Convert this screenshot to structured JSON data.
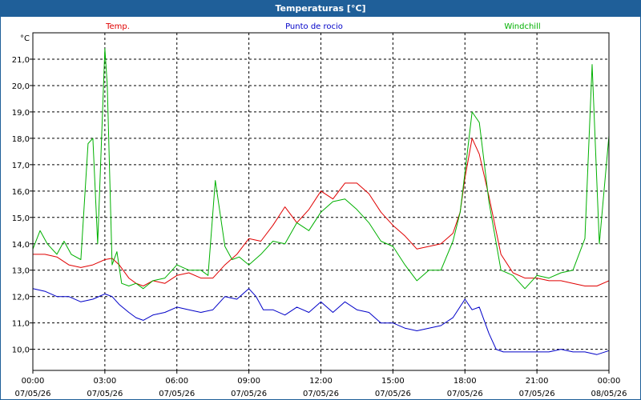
{
  "window": {
    "title": "Temperaturas [°C]"
  },
  "chart_data": {
    "type": "line",
    "title": "Temperaturas [°C]",
    "ylabel": "°C",
    "ylim": [
      9.2,
      22.0
    ],
    "yticks": [
      10.0,
      11.0,
      12.0,
      13.0,
      14.0,
      15.0,
      16.0,
      17.0,
      18.0,
      19.0,
      20.0,
      21.0
    ],
    "ytick_labels": [
      "10,0",
      "11,0",
      "12,0",
      "13,0",
      "14,0",
      "15,0",
      "16,0",
      "17,0",
      "18,0",
      "19,0",
      "20,0",
      "21,0"
    ],
    "xlim": [
      0,
      24
    ],
    "xticks": [
      0,
      3,
      6,
      9,
      12,
      15,
      18,
      21,
      24
    ],
    "xtick_labels": [
      [
        "00:00",
        "07/05/26"
      ],
      [
        "03:00",
        "07/05/26"
      ],
      [
        "06:00",
        "07/05/26"
      ],
      [
        "09:00",
        "07/05/26"
      ],
      [
        "12:00",
        "07/05/26"
      ],
      [
        "15:00",
        "07/05/26"
      ],
      [
        "18:00",
        "07/05/26"
      ],
      [
        "21:00",
        "07/05/26"
      ],
      [
        "00:00",
        "08/05/26"
      ]
    ],
    "grid": true,
    "legend_position": "top",
    "series": [
      {
        "name": "Temp.",
        "color": "#e00000",
        "x": [
          0,
          0.5,
          1,
          1.5,
          2,
          2.5,
          3,
          3.3,
          3.6,
          4,
          4.3,
          4.6,
          5,
          5.5,
          6,
          6.5,
          7,
          7.5,
          8,
          8.5,
          9,
          9.5,
          10,
          10.5,
          11,
          11.5,
          12,
          12.5,
          13,
          13.5,
          14,
          14.5,
          15,
          15.5,
          16,
          16.5,
          17,
          17.5,
          17.8,
          18,
          18.3,
          18.6,
          19,
          19.5,
          20,
          20.5,
          21,
          21.5,
          22,
          22.5,
          23,
          23.5,
          24
        ],
        "y": [
          13.6,
          13.6,
          13.5,
          13.2,
          13.1,
          13.2,
          13.4,
          13.45,
          13.2,
          12.7,
          12.5,
          12.4,
          12.6,
          12.5,
          12.8,
          12.9,
          12.7,
          12.7,
          13.2,
          13.6,
          14.2,
          14.1,
          14.7,
          15.4,
          14.8,
          15.3,
          16.0,
          15.7,
          16.3,
          16.3,
          15.9,
          15.2,
          14.7,
          14.3,
          13.8,
          13.9,
          14.0,
          14.4,
          15.2,
          16.5,
          18.0,
          17.4,
          15.8,
          13.6,
          12.9,
          12.7,
          12.7,
          12.6,
          12.6,
          12.5,
          12.4,
          12.4,
          12.6
        ]
      },
      {
        "name": "Punto de rocio",
        "color": "#0000c8",
        "x": [
          0,
          0.5,
          1,
          1.5,
          2,
          2.5,
          3,
          3.3,
          3.6,
          4,
          4.3,
          4.6,
          5,
          5.5,
          6,
          6.5,
          7,
          7.5,
          8,
          8.5,
          9,
          9.3,
          9.6,
          10,
          10.5,
          11,
          11.5,
          12,
          12.5,
          13,
          13.5,
          14,
          14.5,
          15,
          15.5,
          16,
          16.5,
          17,
          17.5,
          18,
          18.3,
          18.6,
          19,
          19.3,
          19.6,
          20,
          20.5,
          21,
          21.5,
          22,
          22.5,
          23,
          23.5,
          24
        ],
        "y": [
          12.3,
          12.2,
          12.0,
          12.0,
          11.8,
          11.9,
          12.1,
          12.0,
          11.7,
          11.4,
          11.2,
          11.1,
          11.3,
          11.4,
          11.6,
          11.5,
          11.4,
          11.5,
          12.0,
          11.9,
          12.3,
          12.0,
          11.5,
          11.5,
          11.3,
          11.6,
          11.4,
          11.8,
          11.4,
          11.8,
          11.5,
          11.4,
          11.0,
          11.0,
          10.8,
          10.7,
          10.8,
          10.9,
          11.2,
          11.9,
          11.5,
          11.6,
          10.6,
          10.0,
          9.9,
          9.9,
          9.9,
          9.9,
          9.9,
          10.0,
          9.9,
          9.9,
          9.8,
          9.95
        ]
      },
      {
        "name": "Windchill",
        "color": "#00b000",
        "x": [
          0,
          0.3,
          0.6,
          1,
          1.3,
          1.6,
          2,
          2.3,
          2.5,
          2.7,
          3,
          3.1,
          3.3,
          3.5,
          3.7,
          4,
          4.3,
          4.6,
          5,
          5.5,
          6,
          6.5,
          7,
          7.3,
          7.6,
          8,
          8.3,
          8.6,
          9,
          9.5,
          10,
          10.5,
          11,
          11.5,
          12,
          12.5,
          13,
          13.5,
          14,
          14.5,
          15,
          15.5,
          16,
          16.5,
          17,
          17.5,
          17.8,
          18,
          18.3,
          18.6,
          19,
          19.5,
          20,
          20.5,
          21,
          21.5,
          22,
          22.5,
          23,
          23.3,
          23.6,
          24
        ],
        "y": [
          13.8,
          14.5,
          14.0,
          13.6,
          14.1,
          13.6,
          13.4,
          17.8,
          18.0,
          14.0,
          21.4,
          20.0,
          13.2,
          13.7,
          12.5,
          12.4,
          12.5,
          12.3,
          12.6,
          12.7,
          13.2,
          13.0,
          13.0,
          12.8,
          16.4,
          13.9,
          13.4,
          13.5,
          13.2,
          13.6,
          14.1,
          14.0,
          14.8,
          14.5,
          15.2,
          15.6,
          15.7,
          15.3,
          14.8,
          14.1,
          13.9,
          13.2,
          12.6,
          13.0,
          13.0,
          14.1,
          15.2,
          16.7,
          19.0,
          18.6,
          15.6,
          13.0,
          12.8,
          12.3,
          12.8,
          12.7,
          12.9,
          13.0,
          14.2,
          20.8,
          14.0,
          18.1
        ]
      }
    ]
  }
}
